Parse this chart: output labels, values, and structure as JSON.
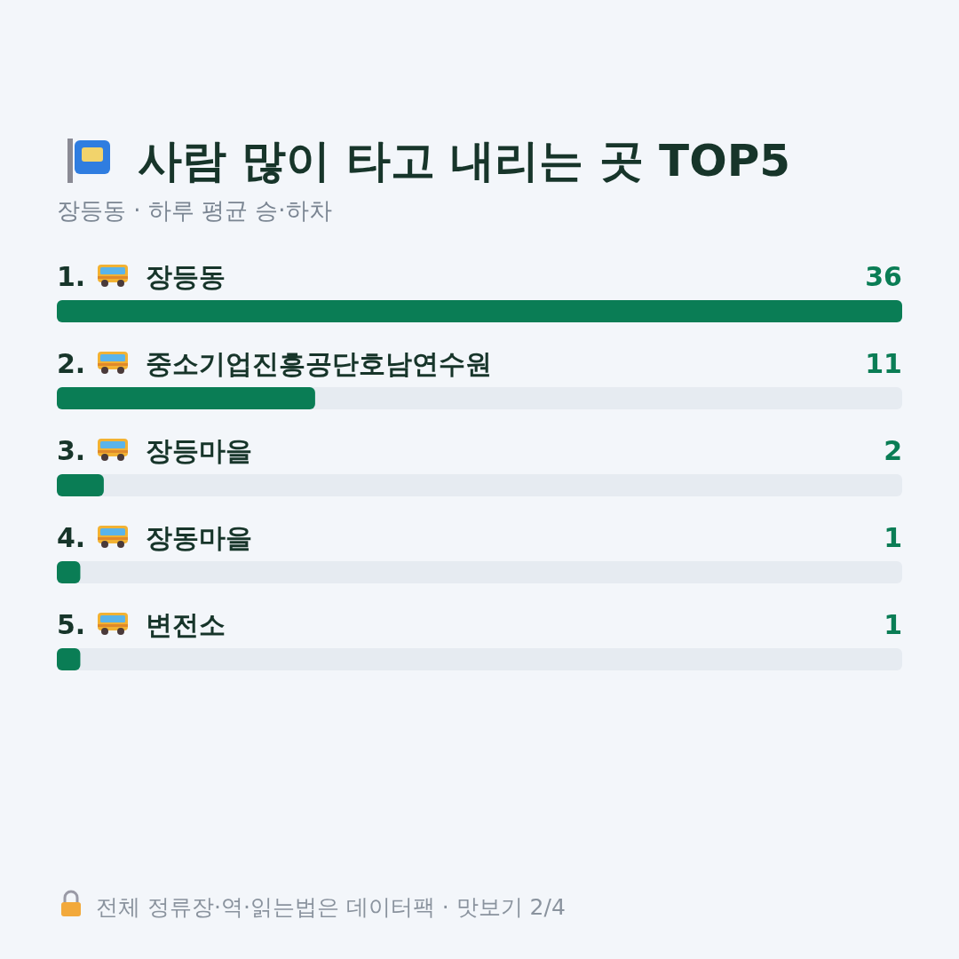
{
  "chart_data": {
    "type": "bar",
    "orientation": "horizontal",
    "title": "사람 많이 타고 내리는 곳 TOP5",
    "subtitle": "장등동 · 하루 평균 승·하차",
    "categories": [
      "1. 장등동",
      "2. 중소기업진흥공단호남연수원",
      "3. 장등마을",
      "4. 장동마을",
      "5. 변전소"
    ],
    "values": [
      36,
      11,
      2,
      1,
      1
    ],
    "color": "#0a7d55",
    "data_labels": true,
    "annotations": [
      "전체 정류장·역·읽는법은 데이터팩 · 맛보기 2/4"
    ]
  }
}
